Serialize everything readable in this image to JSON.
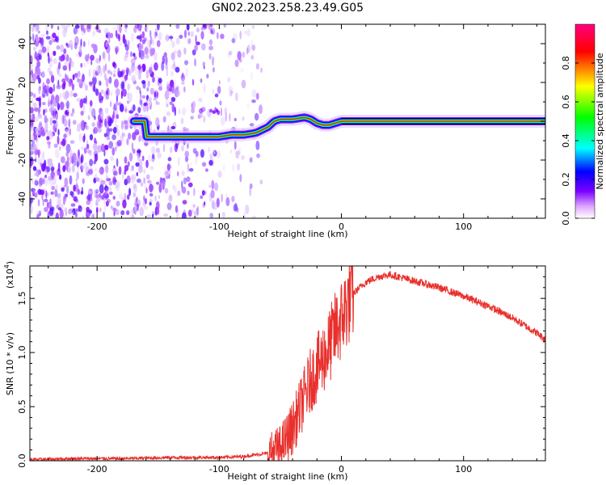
{
  "title": "GN02.2023.258.23.49.G05",
  "chart_data": [
    {
      "type": "heatmap",
      "title": "GN02.2023.258.23.49.G05",
      "xlabel": "Height of straight line (km)",
      "ylabel": "Frequency (Hz)",
      "xlim": [
        -255,
        167
      ],
      "ylim": [
        -50,
        50
      ],
      "xticks": [
        -200,
        -100,
        0,
        100
      ],
      "yticks": [
        -40,
        -20,
        0,
        20,
        40
      ],
      "colorbar": {
        "label": "Normalized spectral amplitude",
        "range": [
          0,
          1
        ],
        "ticks": [
          "0.0",
          "0.2",
          "0.4",
          "0.6",
          "0.8"
        ],
        "colors": [
          "#ffffff",
          "#e0a8ff",
          "#7a00ff",
          "#0000ff",
          "#00ffff",
          "#00ff00",
          "#ffff00",
          "#ff0000",
          "#ff00ff"
        ]
      },
      "frequency_trace": {
        "x": [
          -160,
          -140,
          -120,
          -100,
          -90,
          -80,
          -70,
          -60,
          -55,
          -50,
          -40,
          -30,
          -25,
          -20,
          -15,
          -10,
          -5,
          0,
          50,
          100,
          167
        ],
        "y": [
          -8,
          -8,
          -8,
          -8,
          -7,
          -7,
          -6,
          -3,
          0,
          1,
          1,
          2,
          1,
          -1,
          -2,
          -2,
          -1,
          0,
          0,
          0,
          0
        ]
      },
      "noise_region_x": [
        -255,
        -90
      ],
      "grid": false
    },
    {
      "type": "line",
      "xlabel": "Height of straight line (km)",
      "ylabel": "SNR (10 * v/v)",
      "scale_label": "(x10",
      "scale_exp": "4",
      "scale_close": ")",
      "xlim": [
        -255,
        167
      ],
      "ylim": [
        0,
        1.8
      ],
      "xticks": [
        -200,
        -100,
        0,
        100
      ],
      "yticks": [
        "0.0",
        "0.5",
        "1.0",
        "1.5"
      ],
      "series": [
        {
          "color": "#e8302c",
          "x": [
            -255,
            -220,
            -180,
            -140,
            -100,
            -80,
            -60,
            -50,
            -45,
            -40,
            -35,
            -30,
            -25,
            -20,
            -15,
            -10,
            -5,
            0,
            5,
            10,
            20,
            30,
            40,
            50,
            60,
            80,
            100,
            120,
            140,
            160,
            167
          ],
          "y": [
            0.01,
            0.02,
            0.02,
            0.03,
            0.03,
            0.04,
            0.07,
            0.12,
            0.2,
            0.3,
            0.45,
            0.6,
            0.75,
            0.85,
            0.95,
            1.05,
            1.2,
            1.3,
            1.45,
            1.55,
            1.65,
            1.7,
            1.72,
            1.69,
            1.66,
            1.6,
            1.52,
            1.43,
            1.32,
            1.18,
            1.12
          ]
        }
      ],
      "grid": false
    }
  ]
}
